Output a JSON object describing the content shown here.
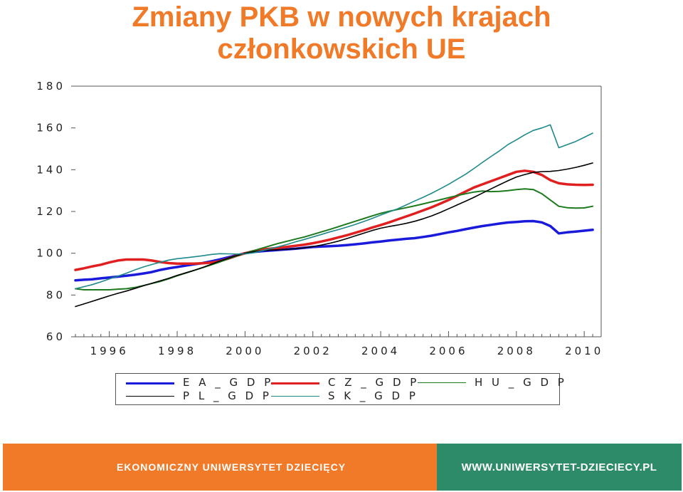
{
  "header": {
    "title_line1": "Zmiany PKB w nowych krajach",
    "title_line2": "członkowskich UE"
  },
  "colors": {
    "title": "#f07a28",
    "footer_left": "#f07a28",
    "footer_right": "#2e8b6a",
    "EA_GDP": "#1a1adb",
    "CZ_GDP": "#e02020",
    "HU_GDP": "#1e7a1e",
    "PL_GDP": "#000000",
    "SK_GDP": "#1f8a8a"
  },
  "chart_data": {
    "type": "line",
    "title": "Zmiany PKB w nowych krajach członkowskich UE",
    "xlabel": "",
    "ylabel": "",
    "xlim": [
      1995.0,
      2010.5
    ],
    "ylim": [
      60,
      180
    ],
    "x_ticks": [
      "1996",
      "1998",
      "2000",
      "2002",
      "2004",
      "2006",
      "2008",
      "2010"
    ],
    "y_ticks": [
      "60",
      "80",
      "100",
      "120",
      "140",
      "160",
      "180"
    ],
    "legend_position": "bottom",
    "grid": false,
    "x": [
      1995.0,
      1995.25,
      1995.5,
      1995.75,
      1996.0,
      1996.25,
      1996.5,
      1996.75,
      1997.0,
      1997.25,
      1997.5,
      1997.75,
      1998.0,
      1998.25,
      1998.5,
      1998.75,
      1999.0,
      1999.25,
      1999.5,
      1999.75,
      2000.0,
      2000.25,
      2000.5,
      2000.75,
      2001.0,
      2001.25,
      2001.5,
      2001.75,
      2002.0,
      2002.25,
      2002.5,
      2002.75,
      2003.0,
      2003.25,
      2003.5,
      2003.75,
      2004.0,
      2004.25,
      2004.5,
      2004.75,
      2005.0,
      2005.25,
      2005.5,
      2005.75,
      2006.0,
      2006.25,
      2006.5,
      2006.75,
      2007.0,
      2007.25,
      2007.5,
      2007.75,
      2008.0,
      2008.25,
      2008.5,
      2008.75,
      2009.0,
      2009.25,
      2009.5,
      2009.75,
      2010.0,
      2010.25
    ],
    "series": [
      {
        "name": "E A _ G D P",
        "color_key": "EA_GDP",
        "width": 3.5,
        "values": [
          87.0,
          87.3,
          87.5,
          88.0,
          88.4,
          88.8,
          89.2,
          89.7,
          90.3,
          91.0,
          92.0,
          92.8,
          93.4,
          94.1,
          94.7,
          95.3,
          96.1,
          97.0,
          98.0,
          99.0,
          100.0,
          100.6,
          101.0,
          101.3,
          101.6,
          101.9,
          102.2,
          102.6,
          103.0,
          103.2,
          103.4,
          103.6,
          103.9,
          104.3,
          104.7,
          105.2,
          105.6,
          106.1,
          106.5,
          106.9,
          107.2,
          107.8,
          108.4,
          109.2,
          110.0,
          110.7,
          111.5,
          112.3,
          113.0,
          113.6,
          114.2,
          114.7,
          115.0,
          115.3,
          115.4,
          114.8,
          113.0,
          109.5,
          110.0,
          110.4,
          110.8,
          111.2
        ]
      },
      {
        "name": "C Z _ G D P",
        "color_key": "CZ_GDP",
        "width": 3.5,
        "values": [
          92.0,
          92.8,
          93.7,
          94.5,
          95.6,
          96.5,
          97.0,
          97.0,
          97.0,
          96.5,
          95.8,
          95.3,
          95.0,
          95.0,
          95.0,
          95.2,
          95.5,
          96.2,
          97.4,
          98.8,
          100.0,
          101.0,
          101.8,
          102.2,
          102.6,
          103.1,
          103.6,
          104.1,
          104.8,
          105.6,
          106.5,
          107.6,
          108.6,
          109.8,
          111.0,
          112.3,
          113.5,
          114.8,
          116.2,
          117.6,
          119.0,
          120.5,
          122.0,
          123.7,
          125.5,
          127.5,
          129.5,
          131.5,
          133.0,
          134.5,
          136.0,
          137.5,
          139.0,
          139.5,
          139.0,
          137.5,
          135.0,
          133.5,
          133.0,
          132.8,
          132.7,
          132.8
        ]
      },
      {
        "name": "H U _ G D P",
        "color_key": "HU_GDP",
        "width": 2,
        "values": [
          83.0,
          82.5,
          82.5,
          82.5,
          82.5,
          82.8,
          83.0,
          83.6,
          84.5,
          85.5,
          86.5,
          87.8,
          89.2,
          90.5,
          91.8,
          93.1,
          94.4,
          95.8,
          97.3,
          98.7,
          100.0,
          101.2,
          102.4,
          103.6,
          104.8,
          105.8,
          106.8,
          107.8,
          109.0,
          110.2,
          111.4,
          112.7,
          114.0,
          115.3,
          116.6,
          117.9,
          119.1,
          120.1,
          121.0,
          121.8,
          122.7,
          123.6,
          124.6,
          125.6,
          126.6,
          127.6,
          128.5,
          129.3,
          129.8,
          129.5,
          129.6,
          130.0,
          130.5,
          130.8,
          130.5,
          128.5,
          125.5,
          122.5,
          121.8,
          121.6,
          121.7,
          122.5
        ]
      },
      {
        "name": "P L _ G D P",
        "color_key": "PL_GDP",
        "width": 1.6,
        "values": [
          74.5,
          75.7,
          77.0,
          78.3,
          79.6,
          80.8,
          81.9,
          83.1,
          84.4,
          85.6,
          86.8,
          88.0,
          89.4,
          90.6,
          91.8,
          93.2,
          94.7,
          96.2,
          97.6,
          98.9,
          100.0,
          100.7,
          101.2,
          101.5,
          101.7,
          101.9,
          102.2,
          102.6,
          103.2,
          103.9,
          104.8,
          105.8,
          107.0,
          108.3,
          109.6,
          110.9,
          112.0,
          112.8,
          113.5,
          114.3,
          115.3,
          116.5,
          117.9,
          119.5,
          121.3,
          123.1,
          124.9,
          126.8,
          128.8,
          130.8,
          132.8,
          134.7,
          136.5,
          137.7,
          138.7,
          139.1,
          139.2,
          139.6,
          140.3,
          141.1,
          142.1,
          143.2
        ]
      },
      {
        "name": "S K _ G D P",
        "color_key": "SK_GDP",
        "width": 1.6,
        "values": [
          83.0,
          84.0,
          85.0,
          86.3,
          87.7,
          89.0,
          90.4,
          92.0,
          93.4,
          94.6,
          95.7,
          96.7,
          97.4,
          97.8,
          98.3,
          98.8,
          99.4,
          99.8,
          99.7,
          99.6,
          99.7,
          100.2,
          101.2,
          102.2,
          103.2,
          104.3,
          105.5,
          106.6,
          107.8,
          109.0,
          110.2,
          111.3,
          112.5,
          113.8,
          115.2,
          116.7,
          118.3,
          119.8,
          121.3,
          123.1,
          125.0,
          126.8,
          128.7,
          130.8,
          133.0,
          135.4,
          137.8,
          140.6,
          143.5,
          146.3,
          149.0,
          152.0,
          154.3,
          156.7,
          158.8,
          160.0,
          161.5,
          150.5,
          152.0,
          153.5,
          155.5,
          157.5
        ]
      }
    ]
  },
  "footer": {
    "left_text": "EKONOMICZNY UNIWERSYTET DZIECIĘCY",
    "right_text": "WWW.UNIWERSYTET-DZIECIECY.PL"
  }
}
